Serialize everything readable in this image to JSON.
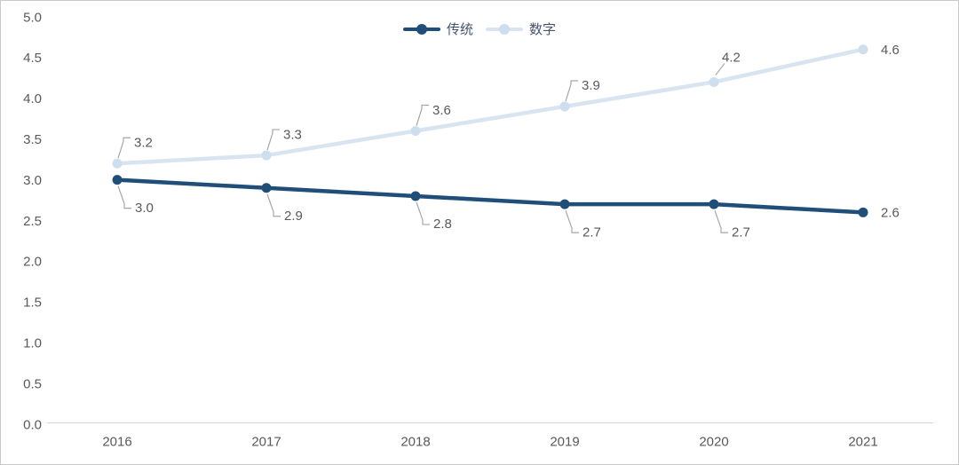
{
  "chart_data": {
    "type": "line",
    "title": "",
    "x": [
      "2016",
      "2017",
      "2018",
      "2019",
      "2020",
      "2021"
    ],
    "series": [
      {
        "name": "传统",
        "color": "#1f4e79",
        "marker_color": "#1f4e79",
        "values": [
          3.0,
          2.9,
          2.8,
          2.7,
          2.7,
          2.6
        ],
        "labels": [
          "3.0",
          "2.9",
          "2.8",
          "2.7",
          "2.7",
          "2.6"
        ],
        "label_placements": [
          "below",
          "below",
          "below",
          "below",
          "below",
          "right"
        ]
      },
      {
        "name": "数字",
        "color": "#d9e4f1",
        "marker_color": "#cddeee",
        "values": [
          3.2,
          3.3,
          3.6,
          3.9,
          4.2,
          4.6
        ],
        "labels": [
          "3.2",
          "3.3",
          "3.6",
          "3.9",
          "4.2",
          "4.6"
        ],
        "label_placements": [
          "above",
          "above",
          "above",
          "above",
          "above_diag",
          "right"
        ]
      }
    ],
    "ylim": [
      0,
      5
    ],
    "ytick_step": 0.5,
    "ytick_labels": [
      "0.0",
      "0.5",
      "1.0",
      "1.5",
      "2.0",
      "2.5",
      "3.0",
      "3.5",
      "4.0",
      "4.5",
      "5.0"
    ],
    "grid": false,
    "legend_position": "top-center",
    "colors": {
      "axis_line": "#d9d9d9",
      "tick_text": "#595959",
      "data_label_text": "#595959",
      "leader_line": "#a6a6a6",
      "legend_text": "#44546a",
      "border": "#c9c9c9",
      "background": "#ffffff"
    }
  }
}
